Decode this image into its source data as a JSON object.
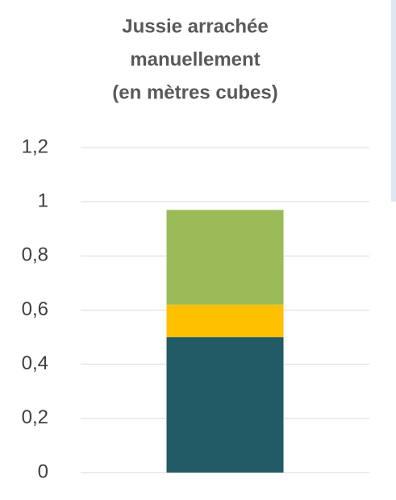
{
  "chart_data": {
    "type": "stacked-bar",
    "title": [
      "Jussie arrachée",
      "manuellement",
      "(en mètres cubes)"
    ],
    "categories": [
      null
    ],
    "series": [
      {
        "color": "#225a66",
        "values": [
          0.5
        ]
      },
      {
        "color": "#ffc000",
        "values": [
          0.12
        ]
      },
      {
        "color": "#9bbb59",
        "values": [
          0.35
        ]
      }
    ],
    "ylim": [
      0,
      1.2
    ],
    "yticks": [
      0,
      {
        "value": 0.2,
        "label": "0,2"
      },
      {
        "value": 0.4,
        "label": "0,4"
      },
      {
        "value": 0.6,
        "label": "0,6"
      },
      {
        "value": 0.8,
        "label": "0,8"
      },
      1,
      {
        "value": 1.2,
        "label": "1,2"
      }
    ],
    "grid": true
  }
}
